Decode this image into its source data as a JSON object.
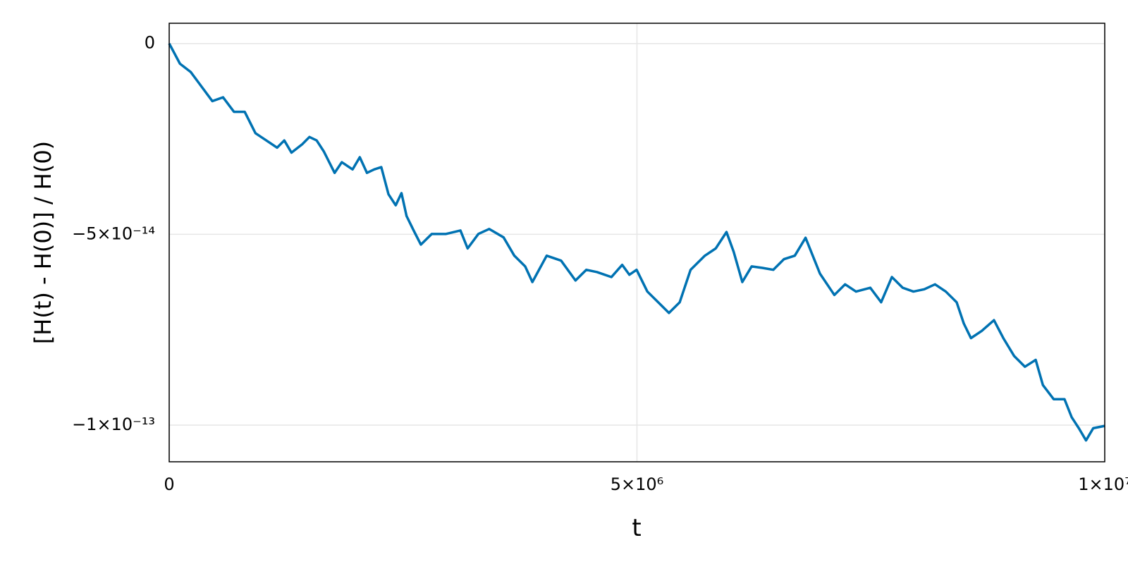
{
  "chart_data": {
    "type": "line",
    "xlabel": "t",
    "ylabel": "[H(t) - H(0)] / H(0)",
    "x": [
      0,
      115000,
      231000,
      346000,
      461000,
      576000,
      692000,
      807000,
      922000,
      1038000,
      1153000,
      1230000,
      1307000,
      1422000,
      1499000,
      1576000,
      1653000,
      1768000,
      1845000,
      1960000,
      2037000,
      2114000,
      2191000,
      2267000,
      2344000,
      2421000,
      2483000,
      2537000,
      2613000,
      2690000,
      2806000,
      2959000,
      3113000,
      3190000,
      3305000,
      3420000,
      3574000,
      3689000,
      3805000,
      3882000,
      4035000,
      4189000,
      4343000,
      4458000,
      4573000,
      4727000,
      4842000,
      4919000,
      4996000,
      5111000,
      5227000,
      5342000,
      5457000,
      5573000,
      5726000,
      5842000,
      5957000,
      6034000,
      6126000,
      6226000,
      6341000,
      6457000,
      6572000,
      6687000,
      6802000,
      6879000,
      6956000,
      7110000,
      7225000,
      7341000,
      7494000,
      7610000,
      7725000,
      7840000,
      7955000,
      8071000,
      8186000,
      8301000,
      8417000,
      8494000,
      8570000,
      8686000,
      8816000,
      8916000,
      9032000,
      9147000,
      9262000,
      9339000,
      9454000,
      9570000,
      9646000,
      9723000,
      9800000,
      9877000,
      10000000
    ],
    "values": [
      0,
      -5.3e-15,
      -7.5e-15,
      -1.13e-14,
      -1.51e-14,
      -1.41e-14,
      -1.79e-14,
      -1.79e-14,
      -2.35e-14,
      -2.54e-14,
      -2.73e-14,
      -2.54e-14,
      -2.86e-14,
      -2.64e-14,
      -2.45e-14,
      -2.54e-14,
      -2.83e-14,
      -3.39e-14,
      -3.11e-14,
      -3.3e-14,
      -2.98e-14,
      -3.39e-14,
      -3.3e-14,
      -3.24e-14,
      -3.95e-14,
      -4.24e-14,
      -3.92e-14,
      -4.52e-14,
      -4.9e-14,
      -5.27e-14,
      -4.99e-14,
      -4.99e-14,
      -4.9e-14,
      -5.37e-14,
      -4.99e-14,
      -4.86e-14,
      -5.08e-14,
      -5.56e-14,
      -5.84e-14,
      -6.25e-14,
      -5.56e-14,
      -5.69e-14,
      -6.21e-14,
      -5.93e-14,
      -5.99e-14,
      -6.12e-14,
      -5.8e-14,
      -6.06e-14,
      -5.93e-14,
      -6.5e-14,
      -6.78e-14,
      -7.06e-14,
      -6.78e-14,
      -5.93e-14,
      -5.56e-14,
      -5.37e-14,
      -4.94e-14,
      -5.46e-14,
      -6.25e-14,
      -5.84e-14,
      -5.88e-14,
      -5.93e-14,
      -5.65e-14,
      -5.56e-14,
      -5.09e-14,
      -5.56e-14,
      -6.03e-14,
      -6.59e-14,
      -6.31e-14,
      -6.5e-14,
      -6.4e-14,
      -6.78e-14,
      -6.12e-14,
      -6.4e-14,
      -6.5e-14,
      -6.44e-14,
      -6.31e-14,
      -6.5e-14,
      -6.78e-14,
      -7.34e-14,
      -7.72e-14,
      -7.53e-14,
      -7.25e-14,
      -7.72e-14,
      -8.19e-14,
      -8.47e-14,
      -8.29e-14,
      -8.95e-14,
      -9.32e-14,
      -9.32e-14,
      -9.79e-14,
      -1.008e-13,
      -1.04e-13,
      -1.008e-13,
      -1.002e-13
    ],
    "color": "#0072b2",
    "xlim": [
      0,
      10000000
    ],
    "xticks": [
      0,
      {
        "value": 5000000,
        "label": "5×10⁶"
      },
      {
        "value": 10000000,
        "label": "1×10⁷"
      }
    ],
    "ylim": [
      -1.096e-13,
      5.3e-15
    ],
    "yticks": [
      0,
      {
        "value": -5e-14,
        "label": "−5×10⁻¹⁴"
      },
      {
        "value": -1e-13,
        "label": "−1×10⁻¹³"
      }
    ],
    "grid": true
  }
}
